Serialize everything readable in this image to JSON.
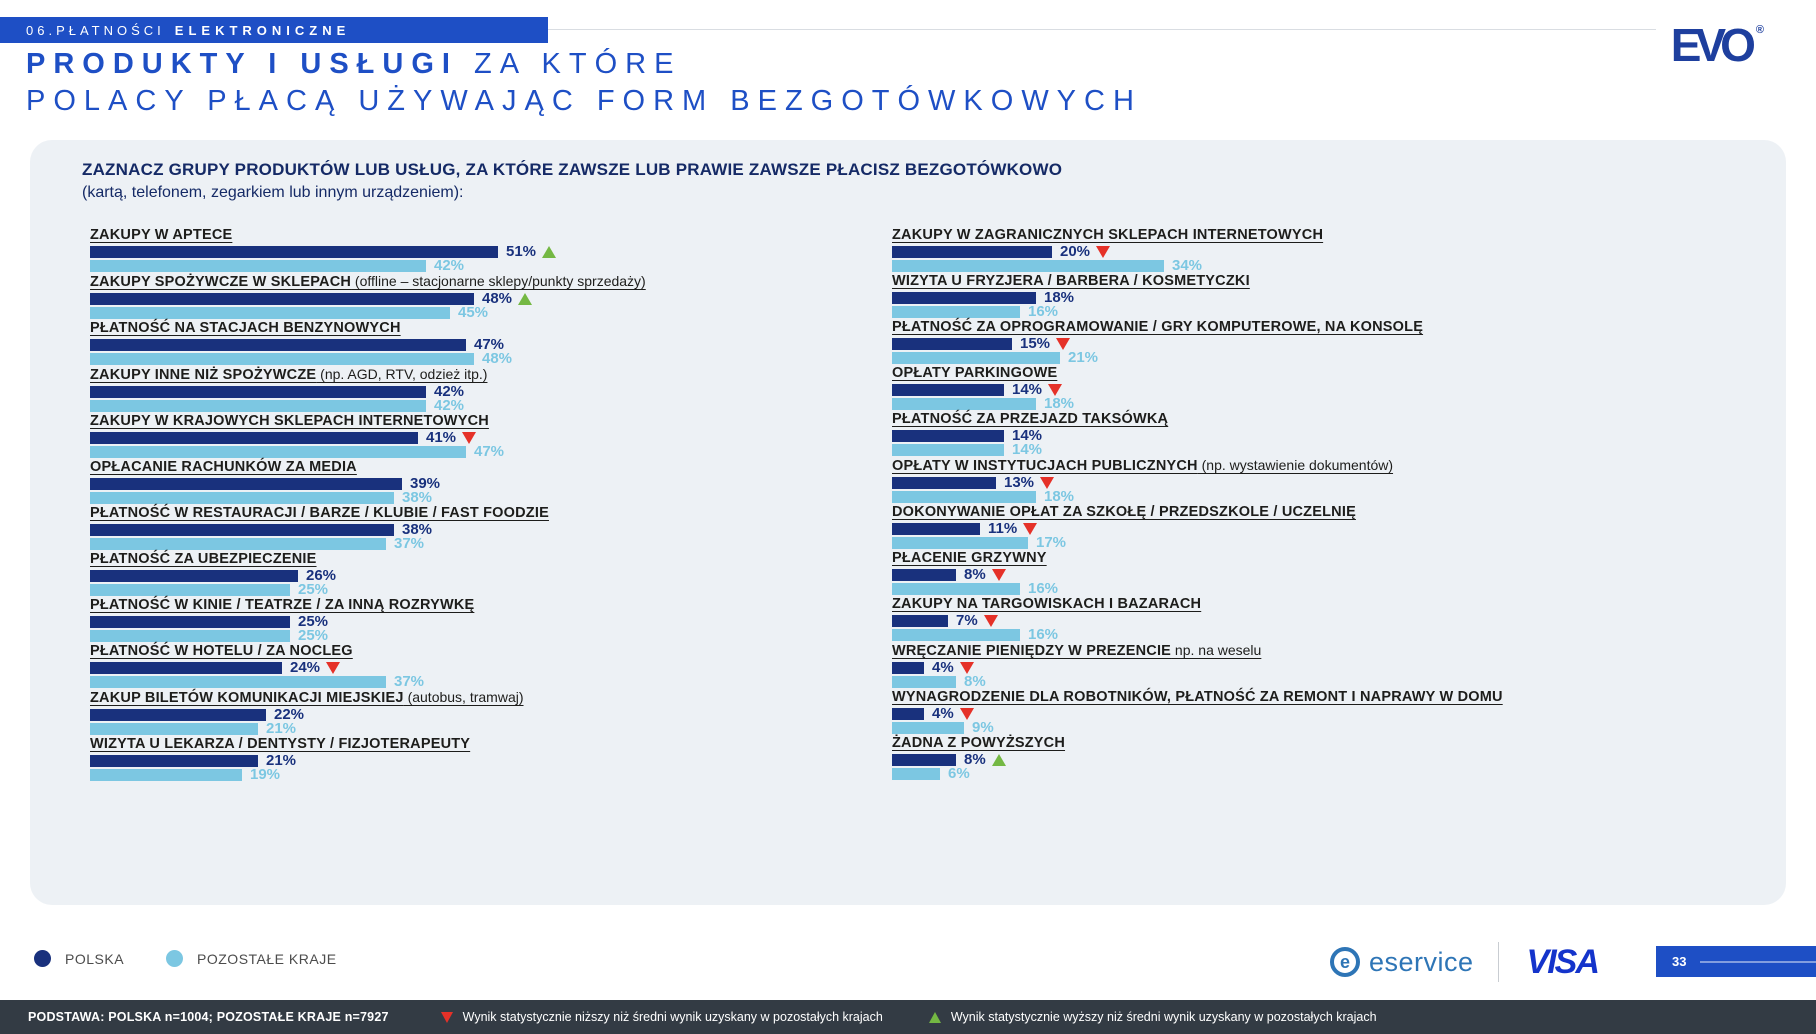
{
  "page": {
    "section_label": {
      "prefix": "06.PŁATNOŚCI",
      "emphasis": "ELEKTRONICZNE"
    },
    "title": {
      "bold": "PRODUKTY I USŁUGI",
      "light": " ZA KTÓRE",
      "line2": "POLACY PŁACĄ UŻYWAJĄC FORM BEZGOTÓWKOWYCH"
    },
    "evo_logo_text": "EVO",
    "page_number": "33"
  },
  "chart_data": {
    "type": "bar",
    "orientation": "horizontal",
    "unit": "%",
    "xlim": [
      0,
      100
    ],
    "title": "ZAZNACZ GRUPY PRODUKTÓW LUB USŁUG, ZA KTÓRE ZAWSZE LUB PRAWIE ZAWSZE PŁACISZ BEZGOTÓWKOWO",
    "subtitle": "(kartą, telefonem, zegarkiem lub innym urządzeniem):",
    "series": [
      "POLSKA",
      "POZOSTAŁE KRAJE"
    ],
    "colors": {
      "polska": "#19317d",
      "pozostale": "#7cc7e2",
      "higher_marker": "#74b843",
      "lower_marker": "#e53128"
    },
    "marker_meaning": {
      "up": "wynik statystycznie wyższy",
      "down": "wynik statystycznie niższy"
    },
    "columns": {
      "left": [
        {
          "label": "ZAKUPY W APTECE",
          "note": "",
          "polska": 51,
          "pozostale": 42,
          "marker": "up"
        },
        {
          "label": "ZAKUPY SPOŻYWCZE W SKLEPACH",
          "note": "(offline – stacjonarne sklepy/punkty sprzedaży)",
          "polska": 48,
          "pozostale": 45,
          "marker": "up"
        },
        {
          "label": "PŁATNOŚĆ NA STACJACH BENZYNOWYCH",
          "note": "",
          "polska": 47,
          "pozostale": 48,
          "marker": ""
        },
        {
          "label": "ZAKUPY INNE NIŻ SPOŻYWCZE",
          "note": "(np. AGD, RTV, odzież itp.)",
          "polska": 42,
          "pozostale": 42,
          "marker": ""
        },
        {
          "label": "ZAKUPY W KRAJOWYCH SKLEPACH INTERNETOWYCH",
          "note": "",
          "polska": 41,
          "pozostale": 47,
          "marker": "down"
        },
        {
          "label": "OPŁACANIE RACHUNKÓW ZA MEDIA",
          "note": "",
          "polska": 39,
          "pozostale": 38,
          "marker": ""
        },
        {
          "label": "PŁATNOŚĆ W RESTAURACJI / BARZE / KLUBIE / FAST FOODZIE",
          "note": "",
          "polska": 38,
          "pozostale": 37,
          "marker": ""
        },
        {
          "label": "PŁATNOŚĆ ZA UBEZPIECZENIE",
          "note": "",
          "polska": 26,
          "pozostale": 25,
          "marker": ""
        },
        {
          "label": "PŁATNOŚĆ W KINIE / TEATRZE / ZA INNĄ ROZRYWKĘ",
          "note": "",
          "polska": 25,
          "pozostale": 25,
          "marker": ""
        },
        {
          "label": "PŁATNOŚĆ W HOTELU / ZA NOCLEG",
          "note": "",
          "polska": 24,
          "pozostale": 37,
          "marker": "down"
        },
        {
          "label": "ZAKUP BILETÓW KOMUNIKACJI MIEJSKIEJ",
          "note": "(autobus, tramwaj)",
          "polska": 22,
          "pozostale": 21,
          "marker": ""
        },
        {
          "label": "WIZYTA U LEKARZA / DENTYSTY / FIZJOTERAPEUTY",
          "note": "",
          "polska": 21,
          "pozostale": 19,
          "marker": ""
        }
      ],
      "right": [
        {
          "label": "ZAKUPY W ZAGRANICZNYCH SKLEPACH INTERNETOWYCH",
          "note": "",
          "polska": 20,
          "pozostale": 34,
          "marker": "down"
        },
        {
          "label": "WIZYTA U FRYZJERA / BARBERA / KOSMETYCZKI",
          "note": "",
          "polska": 18,
          "pozostale": 16,
          "marker": ""
        },
        {
          "label": "PŁATNOŚĆ ZA OPROGRAMOWANIE / GRY KOMPUTEROWE, NA KONSOLĘ",
          "note": "",
          "polska": 15,
          "pozostale": 21,
          "marker": "down"
        },
        {
          "label": "OPŁATY PARKINGOWE",
          "note": "",
          "polska": 14,
          "pozostale": 18,
          "marker": "down"
        },
        {
          "label": "PŁATNOŚĆ ZA PRZEJAZD TAKSÓWKĄ",
          "note": "",
          "polska": 14,
          "pozostale": 14,
          "marker": ""
        },
        {
          "label": "OPŁATY W INSTYTUCJACH PUBLICZNYCH",
          "note": "(np. wystawienie dokumentów)",
          "polska": 13,
          "pozostale": 18,
          "marker": "down"
        },
        {
          "label": "DOKONYWANIE OPŁAT ZA SZKOŁĘ / PRZEDSZKOLE / UCZELNIĘ",
          "note": "",
          "polska": 11,
          "pozostale": 17,
          "marker": "down"
        },
        {
          "label": "PŁACENIE GRZYWNY",
          "note": "",
          "polska": 8,
          "pozostale": 16,
          "marker": "down"
        },
        {
          "label": "ZAKUPY NA TARGOWISKACH I BAZARACH",
          "note": "",
          "polska": 7,
          "pozostale": 16,
          "marker": "down"
        },
        {
          "label": "WRĘCZANIE PIENIĘDZY W PREZENCIE",
          "note": "np. na weselu",
          "polska": 4,
          "pozostale": 8,
          "marker": "down"
        },
        {
          "label": "WYNAGRODZENIE DLA ROBOTNIKÓW, PŁATNOŚĆ ZA REMONT I NAPRAWY W DOMU",
          "note": "",
          "polska": 4,
          "pozostale": 9,
          "marker": "down"
        },
        {
          "label": "ŻADNA Z POWYŻSZYCH",
          "note": "",
          "polska": 8,
          "pozostale": 6,
          "marker": "up"
        }
      ]
    }
  },
  "legend": [
    {
      "label": "POLSKA",
      "color": "#19317d"
    },
    {
      "label": "POZOSTAŁE KRAJE",
      "color": "#7cc7e2"
    }
  ],
  "brands": {
    "eservice": "eservice",
    "eservice_icon": "e",
    "visa": "VISA"
  },
  "footnote": {
    "base": "PODSTAWA: POLSKA n=1004; POZOSTAŁE KRAJE n=7927",
    "down_note": "Wynik statystycznie niższy niż średni wynik uzyskany w pozostałych krajach",
    "up_note": "Wynik statystycznie wyższy niż średni wynik uzyskany w pozostałych krajach"
  }
}
